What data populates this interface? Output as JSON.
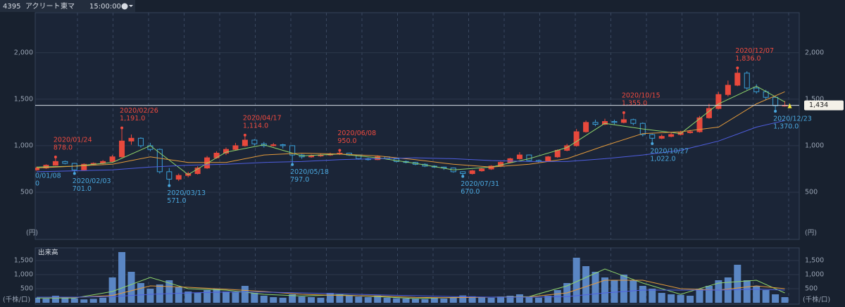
{
  "header": {
    "code": "4395",
    "name": "アクリート",
    "market": "東マ",
    "time": "15:00:00"
  },
  "chart_data": {
    "type": "candlestick",
    "ylim": [
      0,
      2430
    ],
    "yticks": [
      500,
      {
        "value": 1000,
        "label": "1,000"
      },
      {
        "value": 1500,
        "label": "1,500"
      },
      {
        "value": 2000,
        "label": "2,000"
      }
    ],
    "y_unit": "(円)",
    "up_color": "#e8493c",
    "down_color": "#3a9fd6",
    "open": [
      740,
      760,
      790,
      830,
      810,
      740,
      800,
      810,
      830,
      880,
      1050,
      1080,
      1000,
      960,
      720,
      640,
      680,
      700,
      760,
      870,
      920,
      960,
      1000,
      1060,
      1020,
      1000,
      1010,
      1000,
      900,
      880,
      890,
      900,
      910,
      920,
      900,
      860,
      850,
      880,
      860,
      830,
      820,
      800,
      780,
      770,
      760,
      720,
      700,
      730,
      750,
      780,
      820,
      860,
      900,
      840,
      830,
      880,
      950,
      1000,
      1150,
      1250,
      1230,
      1260,
      1250,
      1280,
      1240,
      1120,
      1080,
      1100,
      1120,
      1140,
      1150,
      1300,
      1400,
      1550,
      1650,
      1780,
      1620,
      1580,
      1520,
      1430
    ],
    "high": [
      775,
      800,
      878,
      840,
      815,
      810,
      820,
      845,
      900,
      1191,
      1120,
      1090,
      1030,
      970,
      760,
      700,
      720,
      780,
      890,
      940,
      980,
      1030,
      1114,
      1070,
      1040,
      1030,
      1020,
      1005,
      910,
      905,
      915,
      925,
      950,
      925,
      905,
      870,
      895,
      885,
      865,
      840,
      825,
      810,
      790,
      775,
      765,
      725,
      740,
      760,
      790,
      830,
      870,
      930,
      905,
      850,
      890,
      960,
      1020,
      1180,
      1270,
      1280,
      1290,
      1280,
      1355,
      1290,
      1250,
      1130,
      1120,
      1140,
      1160,
      1170,
      1320,
      1450,
      1580,
      1700,
      1836,
      1800,
      1660,
      1600,
      1530,
      1480
    ],
    "low": [
      730,
      750,
      785,
      800,
      701,
      730,
      790,
      800,
      820,
      870,
      1010,
      980,
      940,
      700,
      571,
      620,
      660,
      690,
      750,
      860,
      900,
      950,
      990,
      1000,
      980,
      990,
      970,
      797,
      860,
      870,
      880,
      890,
      900,
      890,
      850,
      840,
      845,
      850,
      820,
      810,
      790,
      770,
      760,
      740,
      710,
      670,
      690,
      720,
      740,
      770,
      810,
      850,
      830,
      820,
      825,
      870,
      940,
      990,
      1140,
      1210,
      1220,
      1230,
      1240,
      1220,
      1100,
      1022,
      1070,
      1090,
      1110,
      1130,
      1140,
      1290,
      1390,
      1530,
      1640,
      1600,
      1560,
      1490,
      1370,
      1420
    ],
    "close": [
      760,
      790,
      830,
      810,
      740,
      800,
      810,
      830,
      880,
      1050,
      1080,
      1000,
      960,
      720,
      640,
      680,
      700,
      760,
      870,
      920,
      960,
      1000,
      1060,
      1020,
      1000,
      1010,
      1000,
      900,
      880,
      890,
      900,
      910,
      920,
      900,
      860,
      850,
      880,
      860,
      830,
      820,
      800,
      780,
      770,
      760,
      720,
      700,
      730,
      750,
      780,
      820,
      860,
      900,
      840,
      830,
      880,
      950,
      1000,
      1150,
      1250,
      1230,
      1260,
      1250,
      1280,
      1240,
      1120,
      1080,
      1100,
      1120,
      1140,
      1150,
      1300,
      1400,
      1550,
      1650,
      1780,
      1620,
      1580,
      1520,
      1430,
      1434
    ],
    "ma_index": [
      0,
      4,
      8,
      12,
      16,
      20,
      24,
      28,
      32,
      36,
      40,
      44,
      48,
      52,
      56,
      60,
      64,
      68,
      72,
      76,
      79
    ],
    "moving_averages": [
      {
        "color": "#8fd46a",
        "values": [
          770,
          780,
          820,
          1000,
          690,
          930,
          1010,
          890,
          910,
          870,
          810,
          740,
          770,
          860,
          980,
          1240,
          1180,
          1130,
          1450,
          1640,
          1470
        ]
      },
      {
        "color": "#e39a3b",
        "values": [
          760,
          780,
          800,
          880,
          820,
          820,
          900,
          920,
          910,
          890,
          850,
          800,
          770,
          800,
          860,
          1000,
          1130,
          1150,
          1200,
          1450,
          1580
        ]
      },
      {
        "color": "#4f5ee0",
        "values": [
          720,
          730,
          740,
          770,
          790,
          800,
          820,
          830,
          850,
          860,
          870,
          860,
          840,
          830,
          830,
          860,
          900,
          950,
          1050,
          1200,
          1270
        ]
      }
    ],
    "annotations": [
      {
        "date": "2020/01/24",
        "value": 878,
        "label": "878.0",
        "kind": "high"
      },
      {
        "date": "2020/02/03",
        "value": 701,
        "label": "701.0",
        "kind": "low"
      },
      {
        "date": "2020/02/26",
        "value": 1191,
        "label": "1,191.0",
        "kind": "high"
      },
      {
        "date": "2020/03/13",
        "value": 571,
        "label": "571.0",
        "kind": "low"
      },
      {
        "date": "2020/04/17",
        "value": 1114,
        "label": "1,114.0",
        "kind": "high"
      },
      {
        "date": "2020/05/18",
        "value": 797,
        "label": "797.0",
        "kind": "low"
      },
      {
        "date": "2020/06/08",
        "value": 950,
        "label": "950.0",
        "kind": "high"
      },
      {
        "date": "2020/07/31",
        "value": 670,
        "label": "670.0",
        "kind": "low"
      },
      {
        "date": "2020/10/15",
        "value": 1355,
        "label": "1,355.0",
        "kind": "high"
      },
      {
        "date": "2020/10/27",
        "value": 1022,
        "label": "1,022.0",
        "kind": "low"
      },
      {
        "date": "2020/12/07",
        "value": 1836,
        "label": "1,836.0",
        "kind": "high"
      },
      {
        "date": "2020/12/23",
        "value": 1370,
        "label": "1,370.0",
        "kind": "low"
      }
    ],
    "clipped_annotation": {
      "date": "0/01/08",
      "label": "0"
    },
    "current_price": {
      "value": 1434,
      "label": "1,434"
    },
    "volume": {
      "title": "出来高",
      "unit": "(千株/口)",
      "color": "#5a86c4",
      "ylim": [
        0,
        1950
      ],
      "yticks": [
        {
          "value": 500,
          "label": "500"
        },
        {
          "value": 1000,
          "label": "1,000"
        },
        {
          "value": 1500,
          "label": "1,500"
        }
      ],
      "values": [
        180,
        150,
        250,
        200,
        160,
        120,
        140,
        180,
        900,
        1800,
        1100,
        700,
        500,
        650,
        800,
        550,
        400,
        350,
        450,
        500,
        400,
        380,
        600,
        350,
        250,
        200,
        180,
        300,
        220,
        200,
        180,
        350,
        300,
        250,
        220,
        200,
        260,
        180,
        160,
        150,
        140,
        130,
        170,
        150,
        200,
        260,
        230,
        200,
        180,
        220,
        250,
        300,
        200,
        180,
        250,
        450,
        700,
        1600,
        1300,
        1100,
        900,
        800,
        1000,
        800,
        600,
        500,
        350,
        300,
        280,
        250,
        500,
        600,
        800,
        900,
        1350,
        800,
        600,
        450,
        300,
        200
      ],
      "moving_averages": [
        {
          "color": "#8fd46a",
          "values": [
            170,
            170,
            400,
            900,
            500,
            450,
            300,
            240,
            280,
            220,
            150,
            190,
            200,
            220,
            600,
            1200,
            700,
            300,
            700,
            800,
            350
          ]
        },
        {
          "color": "#e39a3b",
          "values": [
            200,
            190,
            260,
            600,
            550,
            480,
            400,
            300,
            260,
            240,
            190,
            180,
            200,
            210,
            350,
            800,
            800,
            500,
            450,
            600,
            500
          ]
        },
        {
          "color": "#4f5ee0",
          "values": [
            200,
            200,
            220,
            300,
            350,
            380,
            380,
            350,
            320,
            280,
            250,
            220,
            200,
            200,
            220,
            350,
            450,
            450,
            450,
            480,
            450
          ]
        }
      ]
    }
  }
}
